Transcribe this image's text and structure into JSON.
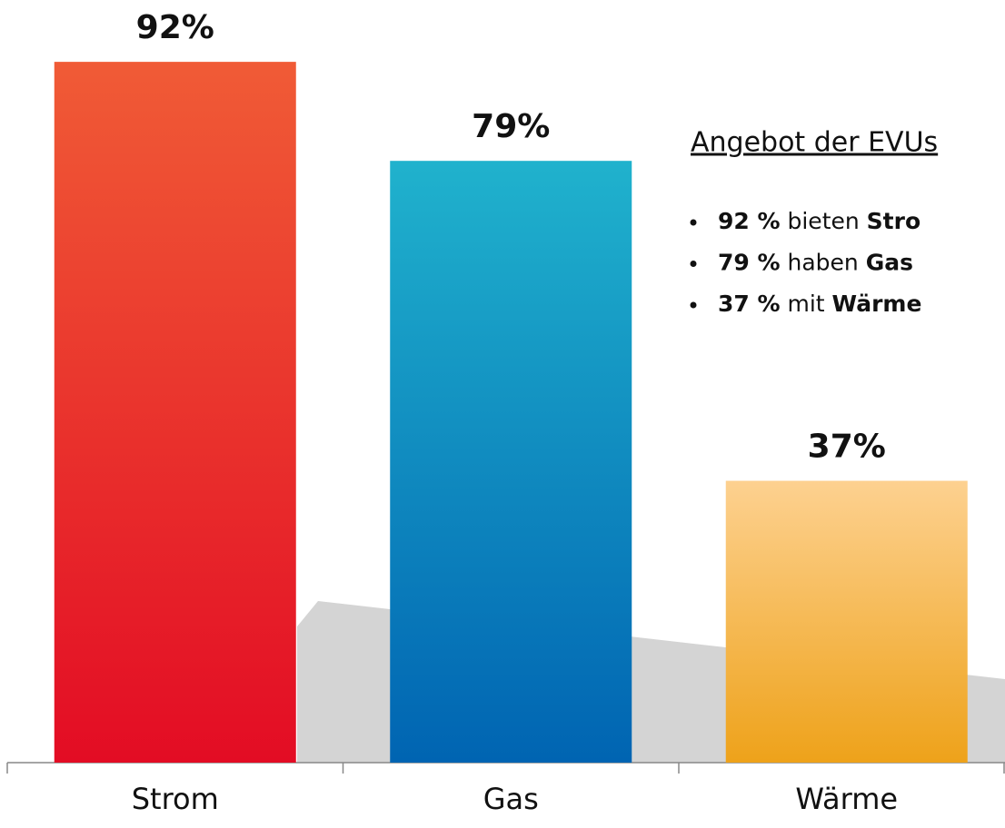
{
  "chart_data": {
    "type": "bar",
    "categories": [
      "Strom",
      "Gas",
      "Wärme"
    ],
    "values": [
      92,
      79,
      37
    ],
    "value_labels": [
      "92%",
      "79%",
      "37%"
    ],
    "gradients": [
      [
        "#f05b36",
        "#e30c24"
      ],
      [
        "#20b2cd",
        "#0064b2"
      ],
      [
        "#fdd190",
        "#eea21a"
      ]
    ],
    "annotation": {
      "title": "Angebot der EVUs",
      "bullets": [
        [
          "92 %",
          " bieten ",
          "Stro"
        ],
        [
          "79 %",
          " haben ",
          "Gas"
        ],
        [
          "37 %",
          " mit ",
          "Wärme"
        ]
      ]
    }
  }
}
